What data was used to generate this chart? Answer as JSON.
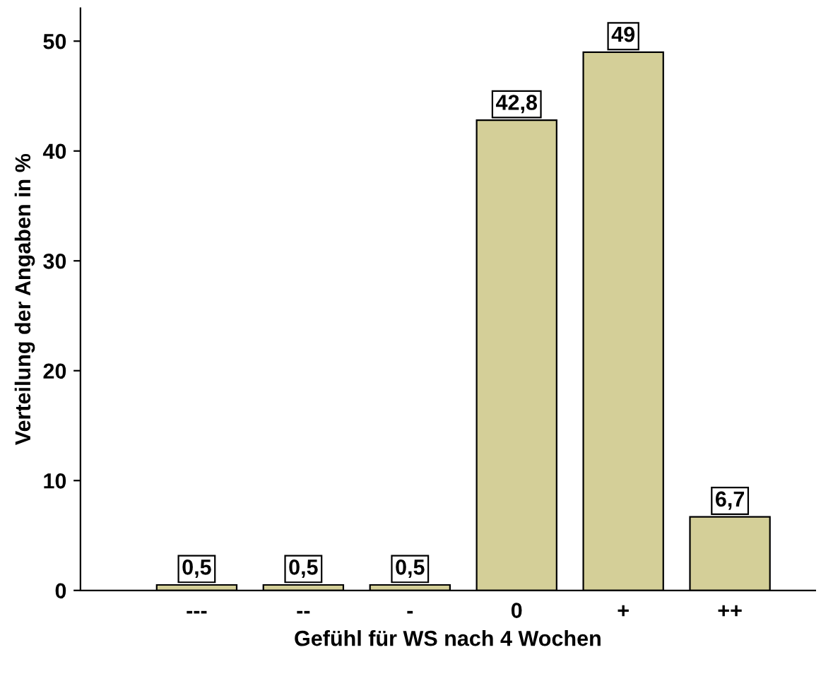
{
  "chart_data": {
    "type": "bar",
    "xlabel": "Gefühl für WS nach 4 Wochen",
    "ylabel": "Verteilung der Angaben in %",
    "categories": [
      "---",
      "--",
      "-",
      "0",
      "+",
      "++"
    ],
    "values": [
      0.5,
      0.5,
      0.5,
      42.8,
      49,
      6.7
    ],
    "value_labels": [
      "0,5",
      "0,5",
      "0,5",
      "42,8",
      "49",
      "6,7"
    ],
    "color": "#d4cf98",
    "ylim": [
      0,
      53
    ],
    "yticks": [
      0,
      10,
      20,
      30,
      40,
      50
    ],
    "grid": false,
    "legend": false
  }
}
